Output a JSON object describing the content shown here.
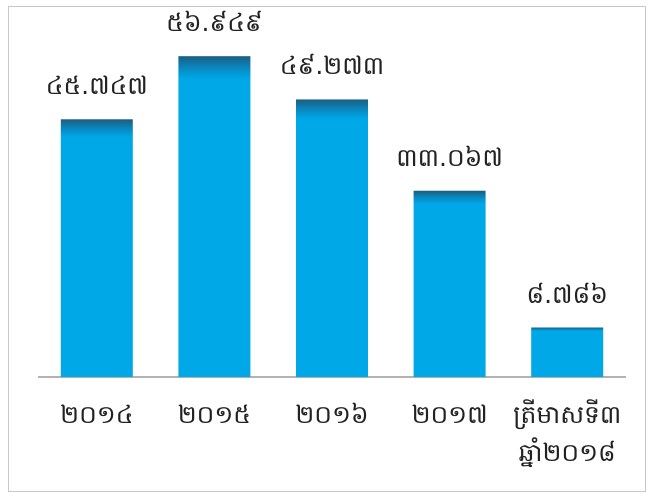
{
  "chart_data": {
    "type": "bar",
    "categories": [
      "២០១៤",
      "២០១៥",
      "២០១៦",
      "២០១៧",
      "ត្រីមាសទី៣ ឆ្នាំ២០១៨"
    ],
    "values": [
      45.747,
      56.949,
      49.273,
      33.067,
      8.786
    ],
    "value_labels": [
      "៤៥.៧៤៧",
      "៥៦.៩៤៩",
      "៤៩.២៧៣",
      "៣៣.០៦៧",
      "៨.៧៨៦"
    ],
    "color": "#00a8e8",
    "ylim": [
      0,
      60
    ]
  }
}
